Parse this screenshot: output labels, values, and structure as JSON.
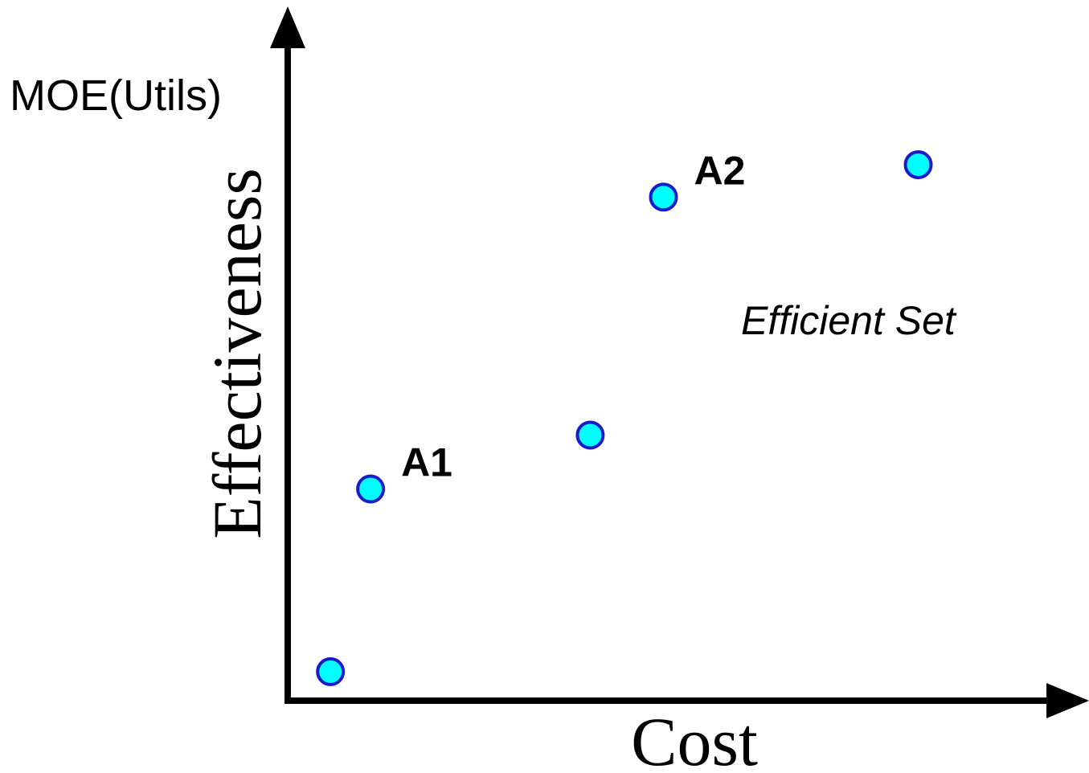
{
  "chart_data": {
    "type": "scatter",
    "title": "",
    "xlabel": "Cost",
    "ylabel": "Effectiveness",
    "y_unit_label": "MOE(Utils)",
    "annotation": "Efficient Set",
    "xlim": [
      0,
      100
    ],
    "ylim": [
      0,
      100
    ],
    "grid": false,
    "point_fill": "#00ffff",
    "point_stroke": "#1a1acc",
    "points": [
      {
        "x": 16.6,
        "y": 24.8,
        "label": ""
      },
      {
        "x": 20.6,
        "y": 51.9,
        "label": "A1"
      },
      {
        "x": 42.5,
        "y": 59.9,
        "label": ""
      },
      {
        "x": 49.8,
        "y": 95.2,
        "label": "A2"
      },
      {
        "x": 75.2,
        "y": 100.0,
        "label": ""
      }
    ]
  }
}
